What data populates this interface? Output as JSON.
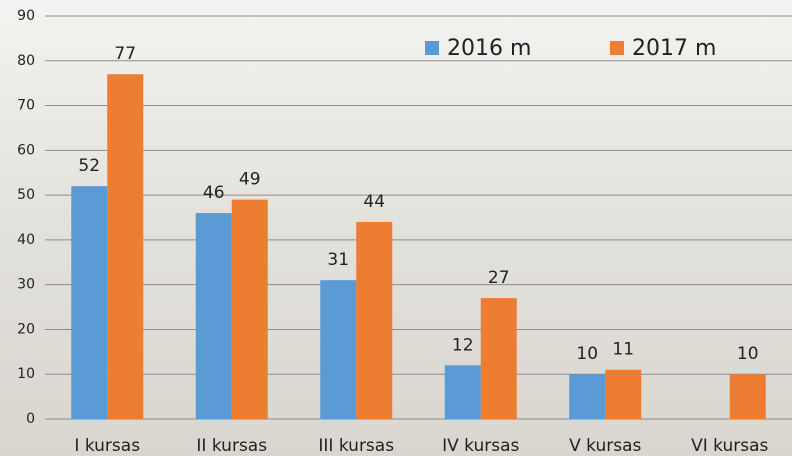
{
  "chart_data": {
    "type": "bar",
    "categories": [
      "I kursas",
      "II kursas",
      "III kursas",
      "IV kursas",
      "V kursas",
      "VI kursas"
    ],
    "series": [
      {
        "name": "2016 m",
        "color": "#5b9bd5",
        "values": [
          52,
          46,
          31,
          12,
          10,
          null
        ]
      },
      {
        "name": "2017 m",
        "color": "#ed7d31",
        "values": [
          77,
          49,
          44,
          27,
          11,
          10
        ]
      }
    ],
    "ylim": [
      0,
      90
    ],
    "yticks": [
      0,
      10,
      20,
      30,
      40,
      50,
      60,
      70,
      80,
      90
    ],
    "grid": true,
    "legend": "top-right"
  }
}
